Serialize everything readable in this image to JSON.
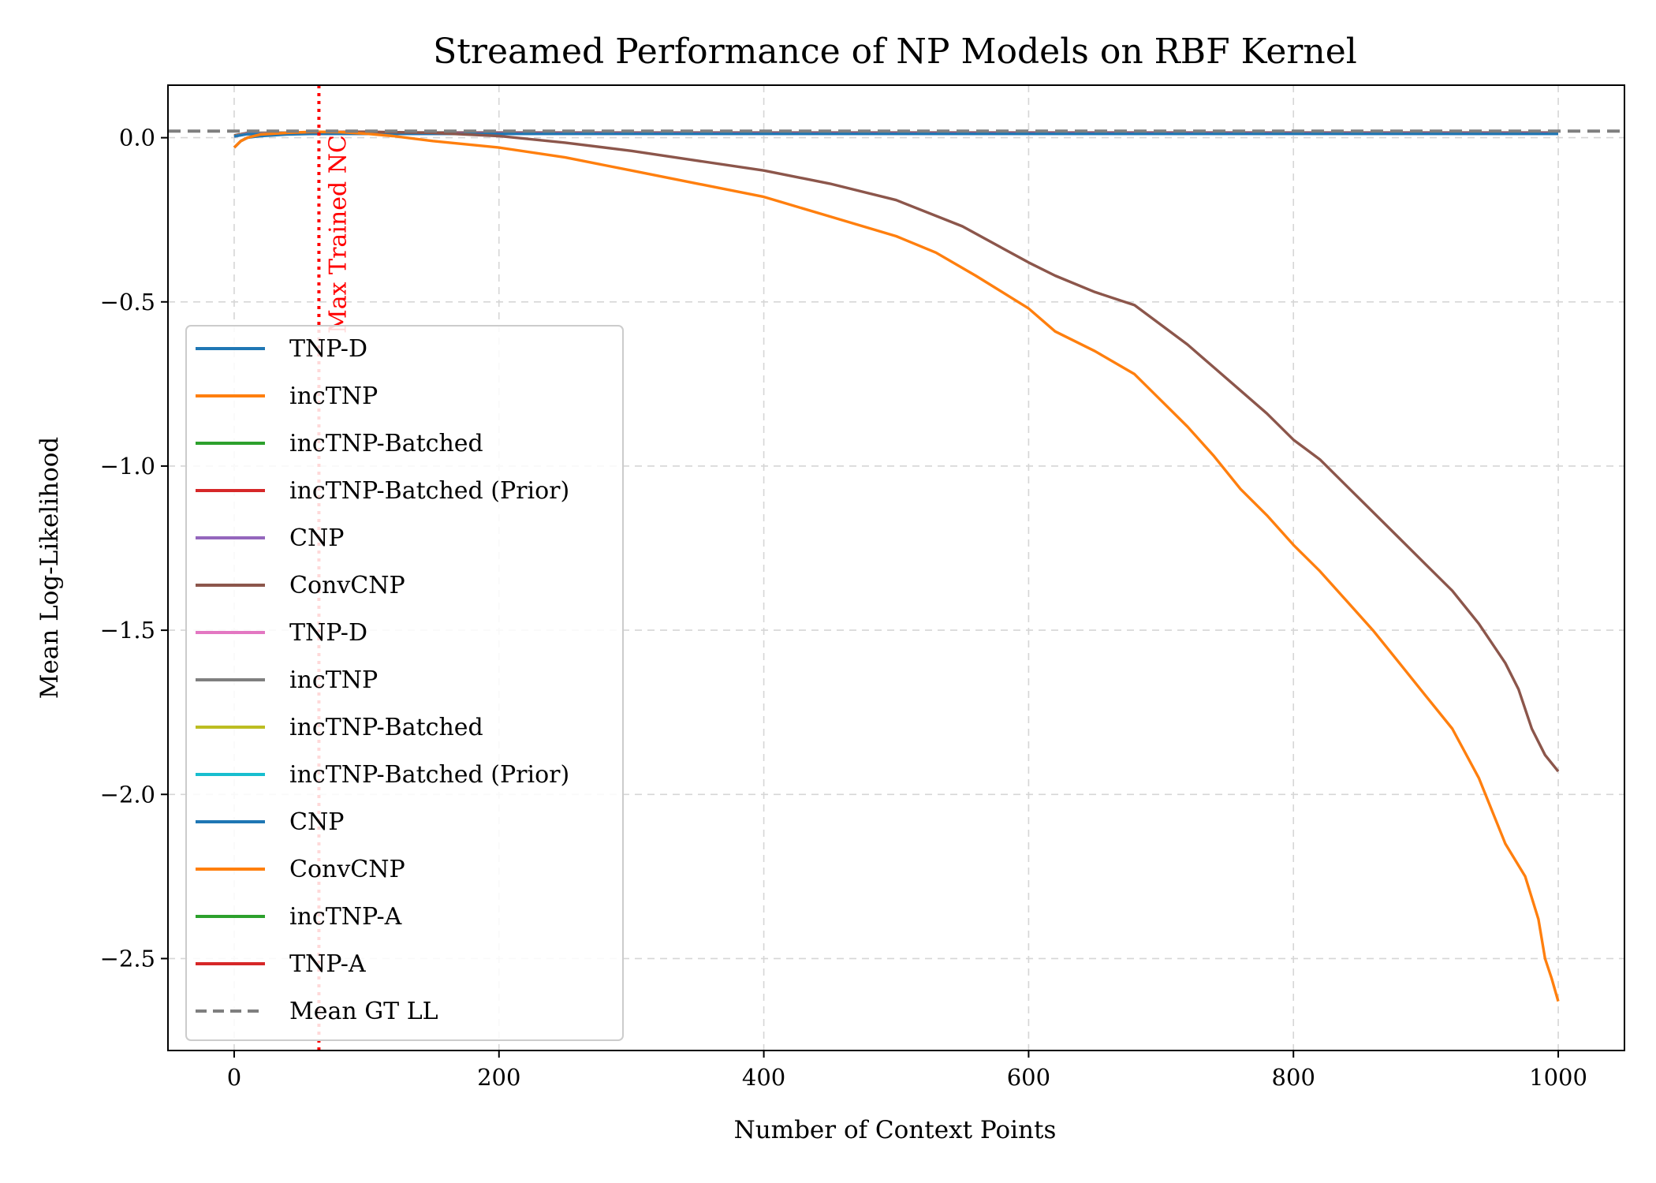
{
  "chart_data": {
    "type": "line",
    "title": "Streamed Performance of NP Models on RBF Kernel",
    "xlabel": "Number of Context Points",
    "ylabel": "Mean Log-Likelihood",
    "xlim": [
      -50,
      1050
    ],
    "ylim": [
      -2.78,
      0.16
    ],
    "xticks": [
      0,
      200,
      400,
      600,
      800,
      1000
    ],
    "yticks": [
      0.0,
      -0.5,
      -1.0,
      -1.5,
      -2.0,
      -2.5
    ],
    "xtick_labels": [
      "0",
      "200",
      "400",
      "600",
      "800",
      "1000"
    ],
    "ytick_labels": [
      "0.0",
      "−0.5",
      "−1.0",
      "−1.5",
      "−2.0",
      "−2.5"
    ],
    "grid": true,
    "legend_placement": "lower-left",
    "reference_lines": [
      {
        "orientation": "horizontal",
        "y": 0.02,
        "label": "Mean GT LL",
        "color": "#7f7f7f",
        "style": "dashed"
      },
      {
        "orientation": "vertical",
        "x": 64,
        "label": "Max Trained NC",
        "color": "#ff0000",
        "style": "dotted"
      }
    ],
    "series": [
      {
        "name": "TNP-D",
        "color": "#1f77b4",
        "x": [
          0,
          5,
          10,
          20,
          40,
          64,
          100,
          200,
          400,
          600,
          800,
          1000
        ],
        "y": [
          -0.03,
          -0.01,
          0.0,
          0.005,
          0.01,
          0.012,
          0.012,
          0.012,
          0.012,
          0.012,
          0.012,
          0.012
        ]
      },
      {
        "name": "incTNP",
        "color": "#ff7f0e",
        "x": [
          0,
          5,
          10,
          20,
          40,
          60,
          80,
          100,
          120,
          150,
          200,
          250,
          300,
          350,
          400,
          450,
          500,
          530,
          560,
          600,
          620,
          650,
          680,
          700,
          720,
          740,
          760,
          780,
          800,
          820,
          840,
          860,
          880,
          900,
          920,
          940,
          960,
          975,
          985,
          990,
          995,
          1000
        ],
        "y": [
          -0.03,
          -0.01,
          0.0,
          0.01,
          0.015,
          0.018,
          0.017,
          0.012,
          0.005,
          -0.01,
          -0.03,
          -0.06,
          -0.1,
          -0.14,
          -0.18,
          -0.24,
          -0.3,
          -0.35,
          -0.42,
          -0.52,
          -0.59,
          -0.65,
          -0.72,
          -0.8,
          -0.88,
          -0.97,
          -1.07,
          -1.15,
          -1.24,
          -1.32,
          -1.41,
          -1.5,
          -1.6,
          -1.7,
          -1.8,
          -1.95,
          -2.15,
          -2.25,
          -2.38,
          -2.5,
          -2.56,
          -2.63
        ]
      },
      {
        "name": "incTNP-Batched",
        "color": "#2ca02c",
        "x": [
          0,
          10,
          64,
          1000
        ],
        "y": [
          0.005,
          0.012,
          0.013,
          0.013
        ]
      },
      {
        "name": "incTNP-Batched (Prior)",
        "color": "#d62728",
        "x": [
          0,
          10,
          64,
          1000
        ],
        "y": [
          0.006,
          0.013,
          0.014,
          0.014
        ]
      },
      {
        "name": "CNP",
        "color": "#9467bd",
        "x": [
          0,
          10,
          64,
          1000
        ],
        "y": [
          0.004,
          0.011,
          0.012,
          0.012
        ]
      },
      {
        "name": "ConvCNP",
        "color": "#8c564b",
        "x": [
          0,
          5,
          10,
          20,
          40,
          60,
          100,
          150,
          200,
          250,
          300,
          350,
          400,
          450,
          500,
          550,
          600,
          620,
          650,
          680,
          700,
          720,
          740,
          760,
          780,
          800,
          820,
          840,
          860,
          880,
          900,
          920,
          940,
          960,
          970,
          980,
          990,
          1000
        ],
        "y": [
          -0.03,
          -0.01,
          0.0,
          0.01,
          0.015,
          0.017,
          0.018,
          0.015,
          0.005,
          -0.015,
          -0.04,
          -0.07,
          -0.1,
          -0.14,
          -0.19,
          -0.27,
          -0.38,
          -0.42,
          -0.47,
          -0.51,
          -0.57,
          -0.63,
          -0.7,
          -0.77,
          -0.84,
          -0.92,
          -0.98,
          -1.06,
          -1.14,
          -1.22,
          -1.3,
          -1.38,
          -1.48,
          -1.6,
          -1.68,
          -1.8,
          -1.88,
          -1.93
        ]
      },
      {
        "name": "TNP-D",
        "color": "#e377c2",
        "x": [
          0,
          10,
          64,
          1000
        ],
        "y": [
          0.004,
          0.012,
          0.013,
          0.013
        ]
      },
      {
        "name": "incTNP",
        "color": "#7f7f7f",
        "x": [
          0,
          10,
          64,
          1000
        ],
        "y": [
          0.007,
          0.015,
          0.016,
          0.016
        ]
      },
      {
        "name": "incTNP-Batched",
        "color": "#bcbd22",
        "x": [
          0,
          10,
          64,
          1000
        ],
        "y": [
          0.005,
          0.012,
          0.013,
          0.013
        ]
      },
      {
        "name": "incTNP-Batched (Prior)",
        "color": "#17becf",
        "x": [
          0,
          10,
          64,
          1000
        ],
        "y": [
          0.005,
          0.012,
          0.013,
          0.013
        ]
      },
      {
        "name": "CNP",
        "color": "#1f77b4",
        "x": [
          0,
          10,
          64,
          1000
        ],
        "y": [
          0.004,
          0.011,
          0.012,
          0.012
        ]
      },
      {
        "name": "ConvCNP",
        "color": "#ff7f0e",
        "x": [
          0,
          10,
          64,
          1000
        ],
        "y": [
          0.005,
          0.012,
          0.013,
          0.013
        ]
      },
      {
        "name": "incTNP-A",
        "color": "#2ca02c",
        "x": [
          0,
          10,
          64,
          1000
        ],
        "y": [
          0.005,
          0.012,
          0.013,
          0.013
        ]
      },
      {
        "name": "TNP-A",
        "color": "#d62728",
        "x": [
          0,
          10,
          64,
          1000
        ],
        "y": [
          0.006,
          0.013,
          0.014,
          0.014
        ]
      }
    ]
  }
}
